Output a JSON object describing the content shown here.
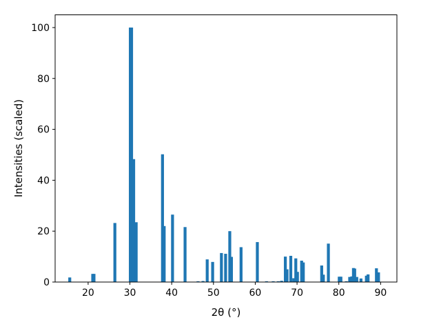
{
  "chart_data": {
    "type": "bar",
    "title": "",
    "xlabel": "2θ (°)",
    "ylabel": "Intensities (scaled)",
    "xlim": [
      12.1,
      93.9
    ],
    "ylim": [
      0,
      105
    ],
    "xticks": [
      20,
      30,
      40,
      50,
      60,
      70,
      80,
      90
    ],
    "yticks": [
      0,
      20,
      40,
      60,
      80,
      100
    ],
    "grid": false,
    "legend": "none",
    "bar_color": "#1f77b4",
    "bar_width": 0.7,
    "series": [
      {
        "x": [
          15.6,
          21.1,
          21.4,
          26.4,
          30.1,
          30.4,
          30.9,
          31.5,
          37.8,
          38.2,
          40.2,
          43.2,
          46.3,
          47.5,
          48.5,
          49.8,
          51.9,
          52.9,
          53.9,
          54.3,
          56.6,
          60.5,
          62.7,
          64.3,
          65.5,
          66.3,
          67.2,
          67.6,
          68.5,
          69.2,
          69.7,
          70.1,
          71.1,
          71.5,
          75.9,
          76.3,
          77.5,
          80.1,
          80.5,
          81.8,
          82.6,
          83.1,
          83.5,
          83.8,
          84.3,
          85.3,
          86.6,
          87.0,
          89.0,
          89.5
        ],
        "y": [
          1.8,
          3.2,
          3.2,
          23.2,
          100,
          100,
          48.3,
          23.5,
          50.2,
          22.0,
          26.5,
          21.6,
          0.3,
          0.4,
          8.9,
          7.9,
          11.4,
          11.1,
          20.0,
          9.9,
          13.7,
          15.7,
          0.3,
          0.3,
          0.3,
          0.5,
          10.0,
          5.0,
          10.3,
          1.5,
          9.3,
          4.0,
          8.4,
          7.7,
          6.5,
          2.9,
          15.1,
          2.1,
          2.1,
          0.3,
          2.0,
          2.2,
          5.5,
          5.3,
          2.0,
          1.4,
          2.5,
          3.0,
          5.4,
          3.8
        ]
      }
    ]
  }
}
